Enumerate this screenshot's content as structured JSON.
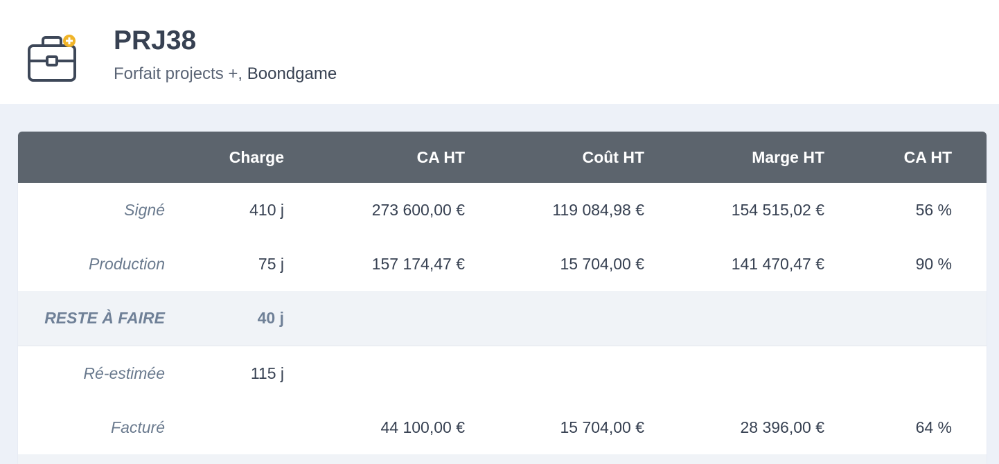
{
  "header": {
    "icon": "briefcase-plus-icon",
    "title": "PRJ38",
    "subtitle_prefix": "Forfait projects +,",
    "company": "Boondgame"
  },
  "colors": {
    "header_bg": "#5c646d",
    "accent_icon": "#f0b429",
    "text_dark": "#374152"
  },
  "table": {
    "columns": [
      "",
      "Charge",
      "CA HT",
      "Coût HT",
      "Marge HT",
      "CA HT"
    ],
    "rows": [
      {
        "label": "Signé",
        "charge": "410 j",
        "ca": "273 600,00 €",
        "cout": "119 084,98 €",
        "marge": "154 515,02 €",
        "pct": "56 %"
      },
      {
        "label": "Production",
        "charge": "75 j",
        "ca": "157 174,47 €",
        "cout": "15 704,00 €",
        "marge": "141 470,47 €",
        "pct": "90 %"
      },
      {
        "label": "RESTE À FAIRE",
        "charge": "40 j",
        "ca": "",
        "cout": "",
        "marge": "",
        "pct": ""
      },
      {
        "label": "Ré-estimée",
        "charge": "115 j",
        "ca": "",
        "cout": "",
        "marge": "",
        "pct": ""
      },
      {
        "label": "Facturé",
        "charge": "",
        "ca": "44 100,00 €",
        "cout": "15 704,00 €",
        "marge": "28 396,00 €",
        "pct": "64 %"
      }
    ]
  }
}
